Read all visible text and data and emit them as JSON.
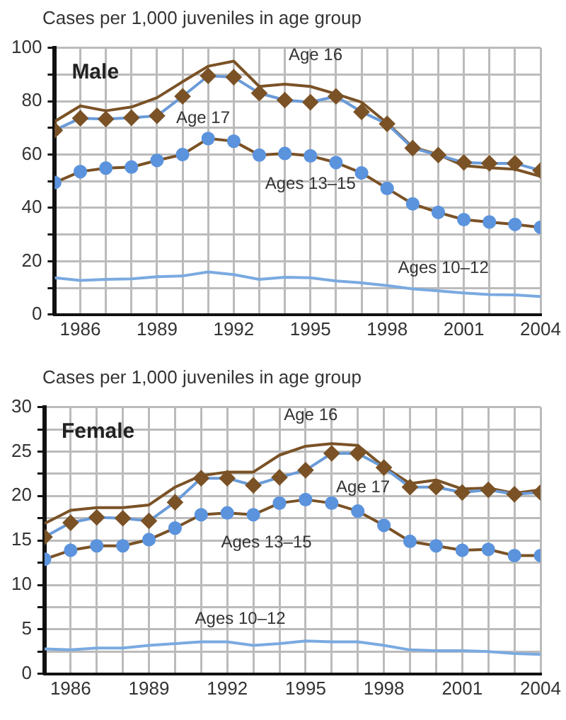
{
  "chart_data": [
    {
      "type": "line",
      "title": "Male",
      "ylabel": "Cases per 1,000 juveniles in age group",
      "x": [
        1985,
        1986,
        1987,
        1988,
        1989,
        1990,
        1991,
        1992,
        1993,
        1994,
        1995,
        1996,
        1997,
        1998,
        1999,
        2000,
        2001,
        2002,
        2003,
        2004
      ],
      "xlim": [
        1985,
        2004
      ],
      "xticks": [
        {
          "value": 1985,
          "label": null
        },
        1986,
        {
          "value": 1987,
          "label": null
        },
        {
          "value": 1988,
          "label": null
        },
        1989,
        {
          "value": 1990,
          "label": null
        },
        {
          "value": 1991,
          "label": null
        },
        1992,
        {
          "value": 1993,
          "label": null
        },
        {
          "value": 1994,
          "label": null
        },
        1995,
        {
          "value": 1996,
          "label": null
        },
        {
          "value": 1997,
          "label": null
        },
        1998,
        {
          "value": 1999,
          "label": null
        },
        {
          "value": 2000,
          "label": null
        },
        2001,
        {
          "value": 2002,
          "label": null
        },
        {
          "value": 2003,
          "label": null
        },
        2004
      ],
      "ylim": [
        0,
        100
      ],
      "yticks": [
        0,
        {
          "value": 10,
          "label": null
        },
        20,
        {
          "value": 30,
          "label": null
        },
        40,
        {
          "value": 50,
          "label": null
        },
        60,
        {
          "value": 70,
          "label": null
        },
        80,
        {
          "value": 90,
          "label": null
        },
        100
      ],
      "grid": true,
      "legend": false,
      "series": [
        {
          "name": "Age 16",
          "color": "#7a5226",
          "marker": "none",
          "values": [
            72.4,
            78.2,
            76.4,
            77.8,
            81.3,
            87.3,
            93.1,
            95,
            85.5,
            86.4,
            85.5,
            82.7,
            79.6,
            71.8,
            62.7,
            60,
            55.8,
            55,
            54.5,
            51.8
          ]
        },
        {
          "name": "Age 17",
          "color": "#6a9bd8",
          "marker": "diamond",
          "colors": [
            "#7a5226",
            "#7a5226",
            "#7a5226",
            "#7a5226",
            "#7a5226",
            "#7a5226",
            "#7a5226",
            "#7a5226",
            "#7a5226",
            "#7a5226",
            "#7a5226",
            "#7a5226",
            "#7a5226",
            "#7a5226",
            "#7a5226",
            "#7a5226",
            "#7a5226",
            "#7a5226",
            "#7a5226",
            "#7a5226"
          ],
          "values": [
            69.1,
            73.6,
            73.3,
            73.8,
            74.5,
            81.8,
            89.5,
            89,
            83,
            80.4,
            79.6,
            81.8,
            76,
            71.5,
            62.4,
            59.8,
            57,
            56.7,
            56.7,
            54
          ]
        },
        {
          "name": "Ages 13–15",
          "color": "#7a5226",
          "marker": "circle",
          "colors": [
            "#5b93dd",
            "#5b93dd",
            "#5b93dd",
            "#5b93dd",
            "#5b93dd",
            "#5b93dd",
            "#5b93dd",
            "#5b93dd",
            "#5b93dd",
            "#5b93dd",
            "#5b93dd",
            "#5b93dd",
            "#5b93dd",
            "#5b93dd",
            "#5b93dd",
            "#5b93dd",
            "#5b93dd",
            "#5b93dd",
            "#5b93dd",
            "#5b93dd"
          ],
          "values": [
            49.5,
            53.6,
            54.9,
            55.3,
            57.8,
            60,
            66,
            65,
            59.8,
            60.4,
            59.5,
            57,
            53.1,
            47.3,
            41.5,
            38.3,
            35.6,
            34.7,
            33.8,
            32.7
          ]
        },
        {
          "name": "Ages 10–12",
          "color": "#7aaae0",
          "marker": "none",
          "values": [
            13.8,
            12.8,
            13.2,
            13.4,
            14.2,
            14.5,
            16,
            15,
            13.2,
            14,
            13.8,
            12.6,
            11.9,
            10.9,
            9.6,
            8.9,
            8.1,
            7.5,
            7.4,
            6.8
          ]
        }
      ]
    },
    {
      "type": "line",
      "title": "Female",
      "ylabel": "Cases per 1,000 juveniles in age group",
      "x": [
        1985,
        1986,
        1987,
        1988,
        1989,
        1990,
        1991,
        1992,
        1993,
        1994,
        1995,
        1996,
        1997,
        1998,
        1999,
        2000,
        2001,
        2002,
        2003,
        2004
      ],
      "xlim": [
        1985,
        2004
      ],
      "xticks": [
        {
          "value": 1985,
          "label": null
        },
        1986,
        {
          "value": 1987,
          "label": null
        },
        {
          "value": 1988,
          "label": null
        },
        1989,
        {
          "value": 1990,
          "label": null
        },
        {
          "value": 1991,
          "label": null
        },
        1992,
        {
          "value": 1993,
          "label": null
        },
        {
          "value": 1994,
          "label": null
        },
        1995,
        {
          "value": 1996,
          "label": null
        },
        {
          "value": 1997,
          "label": null
        },
        1998,
        {
          "value": 1999,
          "label": null
        },
        {
          "value": 2000,
          "label": null
        },
        2001,
        {
          "value": 2002,
          "label": null
        },
        {
          "value": 2003,
          "label": null
        },
        2004
      ],
      "ylim": [
        0,
        30
      ],
      "yticks": [
        0,
        {
          "value": 2.5,
          "label": null
        },
        5,
        {
          "value": 7.5,
          "label": null
        },
        10,
        {
          "value": 12.5,
          "label": null
        },
        15,
        {
          "value": 17.5,
          "label": null
        },
        20,
        {
          "value": 22.5,
          "label": null
        },
        25,
        {
          "value": 27.5,
          "label": null
        },
        30
      ],
      "grid": true,
      "legend": false,
      "series": [
        {
          "name": "Age 16",
          "color": "#7a5226",
          "marker": "none",
          "values": [
            16.9,
            18.4,
            18.7,
            18.7,
            19,
            21,
            22.3,
            22.7,
            22.7,
            24.6,
            25.6,
            25.9,
            25.7,
            23.3,
            21.4,
            21.8,
            20.8,
            20.9,
            20.3,
            20.7
          ]
        },
        {
          "name": "Age 17",
          "color": "#6a9bd8",
          "marker": "diamond",
          "colors": [
            "#7a5226",
            "#7a5226",
            "#7a5226",
            "#7a5226",
            "#7a5226",
            "#7a5226",
            "#7a5226",
            "#7a5226",
            "#7a5226",
            "#7a5226",
            "#7a5226",
            "#7a5226",
            "#7a5226",
            "#7a5226",
            "#7a5226",
            "#7a5226",
            "#7a5226",
            "#7a5226",
            "#7a5226",
            "#7a5226"
          ],
          "values": [
            15.4,
            17,
            17.6,
            17.5,
            17.2,
            19.3,
            22,
            22,
            21.2,
            22.1,
            22.9,
            24.8,
            24.8,
            23.2,
            21,
            21,
            20.4,
            20.7,
            20.2,
            20.4
          ]
        },
        {
          "name": "Ages 13–15",
          "color": "#7a5226",
          "marker": "circle",
          "colors": [
            "#5b93dd",
            "#5b93dd",
            "#5b93dd",
            "#5b93dd",
            "#5b93dd",
            "#5b93dd",
            "#5b93dd",
            "#5b93dd",
            "#5b93dd",
            "#5b93dd",
            "#5b93dd",
            "#5b93dd",
            "#5b93dd",
            "#5b93dd",
            "#5b93dd",
            "#5b93dd",
            "#5b93dd",
            "#5b93dd",
            "#5b93dd",
            "#5b93dd"
          ],
          "values": [
            12.9,
            13.9,
            14.4,
            14.4,
            15.1,
            16.4,
            17.9,
            18.1,
            17.9,
            19.2,
            19.6,
            19.2,
            18.3,
            16.7,
            14.9,
            14.4,
            13.9,
            14,
            13.3,
            13.3
          ]
        },
        {
          "name": "Ages 10–12",
          "color": "#7aaae0",
          "marker": "none",
          "values": [
            2.8,
            2.7,
            2.9,
            2.9,
            3.2,
            3.4,
            3.6,
            3.6,
            3.2,
            3.4,
            3.7,
            3.6,
            3.6,
            3.2,
            2.7,
            2.6,
            2.6,
            2.5,
            2.3,
            2.2
          ]
        }
      ]
    }
  ]
}
